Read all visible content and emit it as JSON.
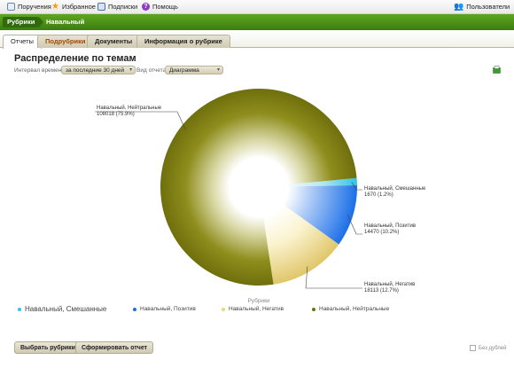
{
  "topbar": {
    "items": [
      {
        "label": "Поручения",
        "icon": "document-icon"
      },
      {
        "label": "Избранное",
        "icon": "star-icon"
      },
      {
        "label": "Подписки",
        "icon": "subscriptions-icon"
      },
      {
        "label": "Помощь",
        "icon": "help-icon"
      }
    ],
    "users_label": "Пользователи"
  },
  "breadcrumb": {
    "root": "Рубрики",
    "current": "Навальный"
  },
  "tabs": [
    {
      "label": "Отчеты",
      "active": true
    },
    {
      "label": "Подрубрики",
      "highlight": true
    },
    {
      "label": "Документы"
    },
    {
      "label": "Информация о рубрике"
    }
  ],
  "main": {
    "title": "Распределение по темам",
    "interval_label": "Интервал времени",
    "interval_value": "за последние 30 дней",
    "view_label": "Вид отчета",
    "view_value": "Диаграмма"
  },
  "chart_data": {
    "type": "pie",
    "xlabel": "Рубрики",
    "categories": [
      "Навальный, Смешанные",
      "Навальный, Позитив",
      "Навальный, Негатив",
      "Навальный, Нейтральные"
    ],
    "values": [
      1670,
      14470,
      18113,
      108018
    ],
    "labels": [
      [
        "Навальный, Смешанные",
        "1670 (1.2%)"
      ],
      [
        "Навальный, Позитив",
        "14470 (10.2%)"
      ],
      [
        "Навальный, Негатив",
        "18113 (12.7%)"
      ],
      [
        "Навальный, Нейтральные",
        "108018 (75.9%)"
      ]
    ],
    "colors": [
      "#2fc3e6",
      "#1a6fe8",
      "#ecd77f",
      "#7a7a10"
    ],
    "legend_position": "bottom"
  },
  "footer": {
    "select_rubrics": "Выбрать рубрики",
    "build_report": "Сформировать отчет",
    "no_duplicates": "Без дублей"
  }
}
